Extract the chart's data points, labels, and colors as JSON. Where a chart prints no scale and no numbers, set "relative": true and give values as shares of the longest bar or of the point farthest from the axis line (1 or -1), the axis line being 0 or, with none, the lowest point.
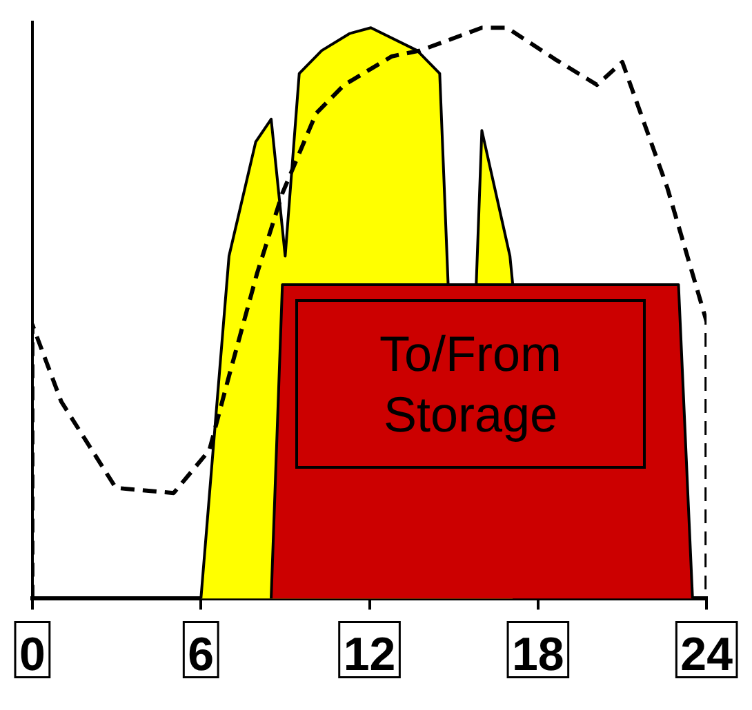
{
  "chart_data": {
    "type": "area",
    "relative": true,
    "xlim": [
      0,
      24
    ],
    "xticks": [
      0,
      6,
      12,
      18,
      24
    ],
    "series": [
      {
        "color": "#ffff00",
        "x": [
          6.0,
          7.0,
          7.95,
          8.5,
          9.0,
          9.5,
          10.3,
          11.3,
          12.05,
          13.7,
          14.5,
          14.8,
          15.8,
          16.0,
          17.0,
          17.1
        ],
        "values": [
          0,
          0.6,
          0.8,
          0.84,
          0.6,
          0.92,
          0.96,
          0.99,
          1.0,
          0.96,
          0.92,
          0.55,
          0.55,
          0.82,
          0.6,
          0.55
        ]
      },
      {
        "color": "#cc0000",
        "x": [
          8.5,
          8.9,
          23.0,
          23.5
        ],
        "values": [
          0,
          0.55,
          0.55,
          0
        ]
      },
      {
        "type": "line",
        "color": "#000000",
        "line_style": "dashed",
        "x": [
          0,
          0,
          1.03,
          2.97,
          5.03,
          6.3,
          7.0,
          8.0,
          8.9,
          10.1,
          11.1,
          12.8,
          13.8,
          16.0,
          16.9,
          18.6,
          20.1,
          21.0,
          22.6,
          24,
          24
        ],
        "values": [
          0,
          0.48,
          0.345,
          0.194,
          0.185,
          0.26,
          0.39,
          0.57,
          0.71,
          0.85,
          0.9,
          0.95,
          0.96,
          1.0,
          1.0,
          0.945,
          0.9,
          0.94,
          0.72,
          0.485,
          0
        ]
      }
    ],
    "annotations": [
      "To/From Storage"
    ],
    "grid": false,
    "legend": false,
    "marker": "none"
  }
}
